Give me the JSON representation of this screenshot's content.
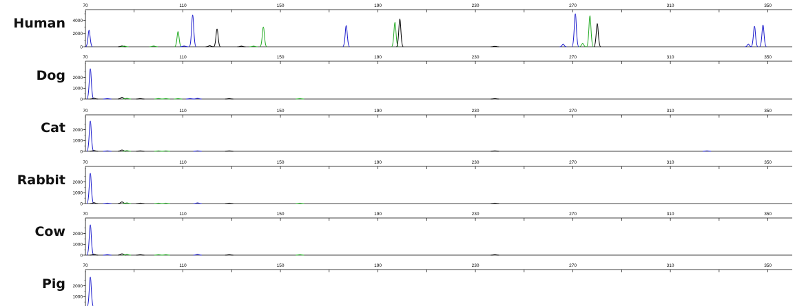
{
  "chart_data": {
    "type": "line",
    "panels": [
      {
        "species": "Human",
        "y_ticks": [
          "0",
          "2000",
          "4000"
        ],
        "y_max": 5000,
        "peaks": [
          {
            "x": 71.5,
            "h": 2500,
            "color": "blue"
          },
          {
            "x": 85,
            "h": 120,
            "color": "black"
          },
          {
            "x": 86,
            "h": 100,
            "color": "green"
          },
          {
            "x": 98,
            "h": 120,
            "color": "green"
          },
          {
            "x": 108,
            "h": 2300,
            "color": "green"
          },
          {
            "x": 110.5,
            "h": 120,
            "color": "blue"
          },
          {
            "x": 114,
            "h": 4800,
            "color": "blue"
          },
          {
            "x": 121,
            "h": 150,
            "color": "black"
          },
          {
            "x": 124,
            "h": 2700,
            "color": "black"
          },
          {
            "x": 134,
            "h": 100,
            "color": "black"
          },
          {
            "x": 139,
            "h": 100,
            "color": "green"
          },
          {
            "x": 143,
            "h": 3000,
            "color": "green"
          },
          {
            "x": 177,
            "h": 3200,
            "color": "blue"
          },
          {
            "x": 197,
            "h": 3700,
            "color": "green"
          },
          {
            "x": 199,
            "h": 4200,
            "color": "black"
          },
          {
            "x": 238,
            "h": 80,
            "color": "black"
          },
          {
            "x": 266,
            "h": 400,
            "color": "blue"
          },
          {
            "x": 271,
            "h": 5000,
            "color": "blue"
          },
          {
            "x": 274,
            "h": 500,
            "color": "green"
          },
          {
            "x": 277,
            "h": 4700,
            "color": "green"
          },
          {
            "x": 280,
            "h": 3500,
            "color": "black"
          },
          {
            "x": 342,
            "h": 400,
            "color": "blue"
          },
          {
            "x": 344.5,
            "h": 3100,
            "color": "blue"
          },
          {
            "x": 348,
            "h": 3300,
            "color": "blue"
          }
        ]
      },
      {
        "species": "Dog",
        "y_ticks": [
          "0",
          "1000",
          "2000"
        ],
        "y_max": 2800,
        "peaks": [
          {
            "x": 72,
            "h": 2800,
            "color": "blue"
          },
          {
            "x": 73.5,
            "h": 80,
            "color": "black"
          },
          {
            "x": 79,
            "h": 40,
            "color": "blue"
          },
          {
            "x": 85,
            "h": 160,
            "color": "black"
          },
          {
            "x": 87,
            "h": 60,
            "color": "green"
          },
          {
            "x": 92.5,
            "h": 40,
            "color": "black"
          },
          {
            "x": 100,
            "h": 50,
            "color": "green"
          },
          {
            "x": 103,
            "h": 40,
            "color": "green"
          },
          {
            "x": 108,
            "h": 40,
            "color": "green"
          },
          {
            "x": 113,
            "h": 40,
            "color": "blue"
          },
          {
            "x": 116,
            "h": 60,
            "color": "blue"
          },
          {
            "x": 129,
            "h": 40,
            "color": "black"
          },
          {
            "x": 158,
            "h": 40,
            "color": "green"
          },
          {
            "x": 238,
            "h": 40,
            "color": "black"
          }
        ]
      },
      {
        "species": "Cat",
        "y_ticks": [
          "0",
          "1000",
          "2000"
        ],
        "y_max": 2800,
        "peaks": [
          {
            "x": 72,
            "h": 2800,
            "color": "blue"
          },
          {
            "x": 73.5,
            "h": 80,
            "color": "black"
          },
          {
            "x": 79,
            "h": 40,
            "color": "blue"
          },
          {
            "x": 85,
            "h": 130,
            "color": "black"
          },
          {
            "x": 87,
            "h": 60,
            "color": "green"
          },
          {
            "x": 92.5,
            "h": 40,
            "color": "black"
          },
          {
            "x": 100,
            "h": 40,
            "color": "green"
          },
          {
            "x": 103,
            "h": 40,
            "color": "green"
          },
          {
            "x": 116,
            "h": 40,
            "color": "blue"
          },
          {
            "x": 129,
            "h": 40,
            "color": "black"
          },
          {
            "x": 238,
            "h": 40,
            "color": "black"
          },
          {
            "x": 325,
            "h": 40,
            "color": "blue"
          }
        ]
      },
      {
        "species": "Rabbit",
        "y_ticks": [
          "0",
          "1000",
          "2000"
        ],
        "y_max": 2800,
        "peaks": [
          {
            "x": 72,
            "h": 2800,
            "color": "blue"
          },
          {
            "x": 73.5,
            "h": 80,
            "color": "black"
          },
          {
            "x": 79,
            "h": 40,
            "color": "blue"
          },
          {
            "x": 85,
            "h": 150,
            "color": "black"
          },
          {
            "x": 87,
            "h": 60,
            "color": "green"
          },
          {
            "x": 92.5,
            "h": 40,
            "color": "black"
          },
          {
            "x": 100,
            "h": 40,
            "color": "green"
          },
          {
            "x": 103,
            "h": 40,
            "color": "green"
          },
          {
            "x": 116,
            "h": 60,
            "color": "blue"
          },
          {
            "x": 129,
            "h": 40,
            "color": "black"
          },
          {
            "x": 158,
            "h": 40,
            "color": "green"
          },
          {
            "x": 238,
            "h": 40,
            "color": "black"
          }
        ]
      },
      {
        "species": "Cow",
        "y_ticks": [
          "0",
          "1000",
          "2000"
        ],
        "y_max": 2800,
        "peaks": [
          {
            "x": 72,
            "h": 2800,
            "color": "blue"
          },
          {
            "x": 73.5,
            "h": 80,
            "color": "black"
          },
          {
            "x": 79,
            "h": 40,
            "color": "blue"
          },
          {
            "x": 85,
            "h": 130,
            "color": "black"
          },
          {
            "x": 87,
            "h": 60,
            "color": "green"
          },
          {
            "x": 92.5,
            "h": 40,
            "color": "black"
          },
          {
            "x": 100,
            "h": 40,
            "color": "green"
          },
          {
            "x": 103,
            "h": 40,
            "color": "green"
          },
          {
            "x": 116,
            "h": 60,
            "color": "blue"
          },
          {
            "x": 129,
            "h": 40,
            "color": "black"
          },
          {
            "x": 158,
            "h": 40,
            "color": "green"
          },
          {
            "x": 238,
            "h": 40,
            "color": "black"
          }
        ]
      },
      {
        "species": "Pig",
        "y_ticks": [
          "1000",
          "2000"
        ],
        "y_max": 2800,
        "peaks": [
          {
            "x": 72,
            "h": 2800,
            "color": "blue"
          }
        ]
      }
    ],
    "x_ticks": [
      70,
      110,
      150,
      190,
      230,
      270,
      310,
      350
    ],
    "x_range": [
      70,
      360
    ],
    "colors": {
      "blue": "#1a1acc",
      "green": "#22aa22",
      "black": "#000000"
    },
    "title": "",
    "xlabel": "",
    "ylabel": ""
  }
}
